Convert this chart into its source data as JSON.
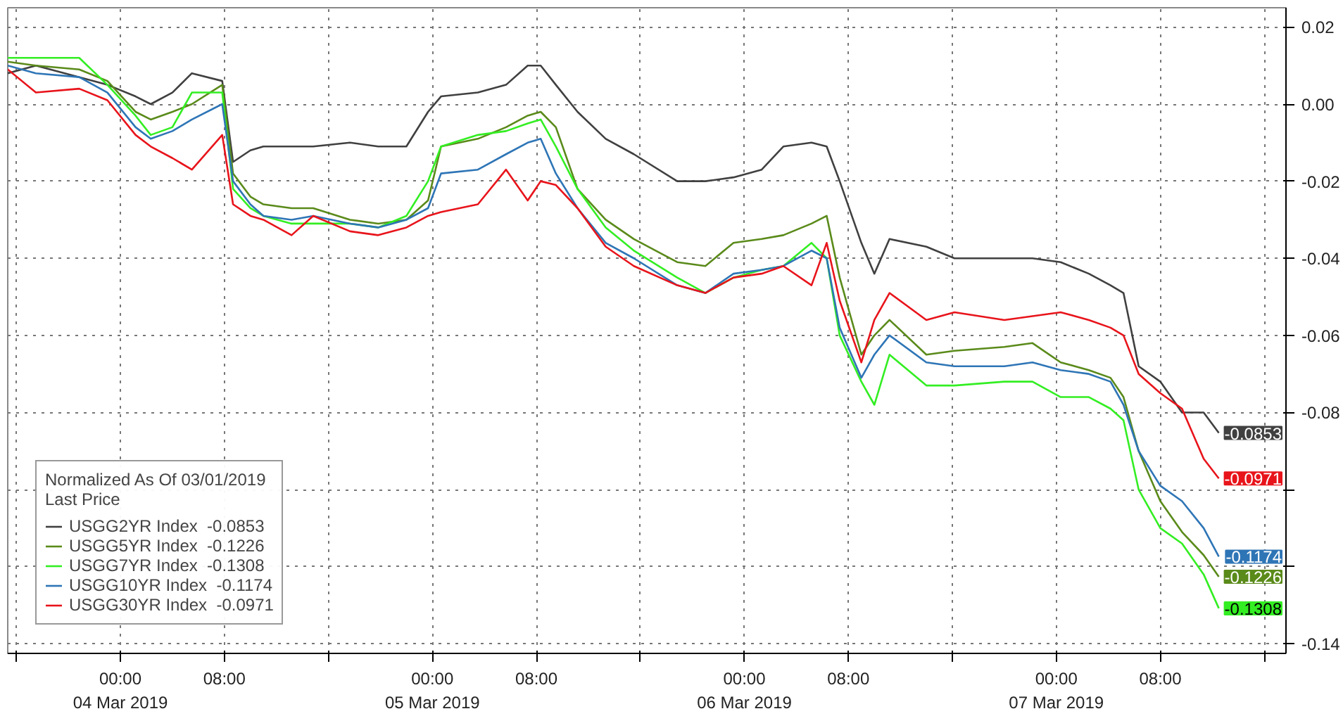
{
  "chart_data": {
    "type": "line",
    "legend_title": "Normalized As Of 03/01/2019\nLast Price",
    "legend": "bottom left",
    "grid": true,
    "line_style": "solid",
    "x": [
      "2019-03-03T15:20",
      "2019-03-03T17:30",
      "2019-03-03T20:50",
      "2019-03-03T23:00",
      "2019-03-04T01:10",
      "2019-03-04T02:20",
      "2019-03-04T04:00",
      "2019-03-04T05:30",
      "2019-03-04T07:50",
      "2019-03-04T08:40",
      "2019-03-04T10:00",
      "2019-03-04T11:00",
      "2019-03-04T13:10",
      "2019-03-04T14:50",
      "2019-03-04T17:40",
      "2019-03-04T19:50",
      "2019-03-04T22:00",
      "2019-03-04T23:40",
      "2019-03-05T00:40",
      "2019-03-05T03:30",
      "2019-03-05T05:40",
      "2019-03-05T07:20",
      "2019-03-05T08:20",
      "2019-03-05T09:30",
      "2019-03-05T11:10",
      "2019-03-05T13:20",
      "2019-03-05T15:30",
      "2019-03-05T18:50",
      "2019-03-05T21:00",
      "2019-03-05T23:10",
      "2019-03-06T01:20",
      "2019-03-06T03:00",
      "2019-03-06T05:10",
      "2019-03-06T06:20",
      "2019-03-06T07:20",
      "2019-03-06T09:00",
      "2019-03-06T10:00",
      "2019-03-06T11:10",
      "2019-03-06T14:00",
      "2019-03-06T16:10",
      "2019-03-06T20:00",
      "2019-03-06T22:10",
      "2019-03-07T00:20",
      "2019-03-07T02:30",
      "2019-03-07T04:10",
      "2019-03-07T05:10",
      "2019-03-07T06:20",
      "2019-03-07T08:00",
      "2019-03-07T09:40",
      "2019-03-07T11:20",
      "2019-03-07T12:30"
    ],
    "xlim": [
      "2019-03-03T15:20",
      "2019-03-07T17:40"
    ],
    "xticks": [
      {
        "value": "2019-03-03T16:00",
        "label": null
      },
      {
        "value": "2019-03-04T00:00",
        "label": "00:00\n04 Mar 2019"
      },
      {
        "value": "2019-03-04T08:00",
        "label": "08:00"
      },
      {
        "value": "2019-03-04T16:00",
        "label": null
      },
      {
        "value": "2019-03-05T00:00",
        "label": "00:00\n05 Mar 2019"
      },
      {
        "value": "2019-03-05T08:00",
        "label": "08:00"
      },
      {
        "value": "2019-03-05T16:00",
        "label": null
      },
      {
        "value": "2019-03-06T00:00",
        "label": "00:00\n06 Mar 2019"
      },
      {
        "value": "2019-03-06T08:00",
        "label": "08:00"
      },
      {
        "value": "2019-03-06T16:00",
        "label": null
      },
      {
        "value": "2019-03-07T00:00",
        "label": "00:00\n07 Mar 2019"
      },
      {
        "value": "2019-03-07T08:00",
        "label": "08:00"
      },
      {
        "value": "2019-03-07T16:00",
        "label": null
      }
    ],
    "ylim": [
      -0.1425,
      0.025
    ],
    "yticks": [
      {
        "value": 0.02,
        "label": "0.02"
      },
      {
        "value": 0,
        "label": "0.00"
      },
      {
        "value": -0.02,
        "label": "-0.02"
      },
      {
        "value": -0.04,
        "label": "-0.04"
      },
      {
        "value": -0.06,
        "label": "-0.06"
      },
      {
        "value": -0.08,
        "label": "-0.08"
      },
      {
        "value": -0.1,
        "label": null
      },
      {
        "value": -0.12,
        "label": null
      },
      {
        "value": -0.14,
        "label": "-0.14"
      }
    ],
    "series": [
      {
        "name": "USGG2YR Index  -0.0853",
        "color": "#404040",
        "values": [
          0.008,
          0.01,
          0.007,
          0.005,
          0.002,
          0.0,
          0.003,
          0.008,
          0.006,
          -0.015,
          -0.012,
          -0.011,
          -0.011,
          -0.011,
          -0.01,
          -0.011,
          -0.011,
          -0.002,
          0.002,
          0.003,
          0.005,
          0.01,
          0.01,
          0.005,
          -0.002,
          -0.009,
          -0.013,
          -0.02,
          -0.02,
          -0.019,
          -0.017,
          -0.011,
          -0.01,
          -0.011,
          -0.02,
          -0.036,
          -0.044,
          -0.035,
          -0.037,
          -0.04,
          -0.04,
          -0.04,
          -0.041,
          -0.044,
          -0.047,
          -0.049,
          -0.068,
          -0.072,
          -0.08,
          -0.08,
          -0.0853
        ],
        "value_labels": [
          null,
          null,
          null,
          null,
          null,
          null,
          null,
          null,
          null,
          null,
          null,
          null,
          null,
          null,
          null,
          null,
          null,
          null,
          null,
          null,
          null,
          null,
          null,
          null,
          null,
          null,
          null,
          null,
          null,
          null,
          null,
          null,
          null,
          null,
          null,
          null,
          null,
          null,
          null,
          null,
          null,
          null,
          null,
          null,
          null,
          null,
          null,
          null,
          null,
          null,
          "-0.0853"
        ]
      },
      {
        "name": "USGG5YR Index  -0.1226",
        "color": "#5a8a1a",
        "values": [
          0.011,
          0.01,
          0.009,
          0.006,
          -0.002,
          -0.004,
          -0.002,
          0.0,
          0.005,
          -0.018,
          -0.024,
          -0.026,
          -0.027,
          -0.027,
          -0.03,
          -0.031,
          -0.03,
          -0.025,
          -0.011,
          -0.009,
          -0.006,
          -0.003,
          -0.002,
          -0.006,
          -0.022,
          -0.03,
          -0.035,
          -0.041,
          -0.042,
          -0.036,
          -0.035,
          -0.034,
          -0.031,
          -0.029,
          -0.045,
          -0.065,
          -0.06,
          -0.056,
          -0.065,
          -0.064,
          -0.063,
          -0.062,
          -0.067,
          -0.069,
          -0.071,
          -0.076,
          -0.09,
          -0.103,
          -0.111,
          -0.117,
          -0.1226
        ],
        "value_labels": [
          null,
          null,
          null,
          null,
          null,
          null,
          null,
          null,
          null,
          null,
          null,
          null,
          null,
          null,
          null,
          null,
          null,
          null,
          null,
          null,
          null,
          null,
          null,
          null,
          null,
          null,
          null,
          null,
          null,
          null,
          null,
          null,
          null,
          null,
          null,
          null,
          null,
          null,
          null,
          null,
          null,
          null,
          null,
          null,
          null,
          null,
          null,
          null,
          null,
          null,
          "-0.1226"
        ]
      },
      {
        "name": "USGG7YR Index  -0.1308",
        "color": "#33ee22",
        "values": [
          0.012,
          0.012,
          0.012,
          0.005,
          -0.003,
          -0.008,
          -0.006,
          0.003,
          0.003,
          -0.022,
          -0.027,
          -0.029,
          -0.031,
          -0.031,
          -0.031,
          -0.032,
          -0.029,
          -0.02,
          -0.011,
          -0.008,
          -0.007,
          -0.005,
          -0.004,
          -0.011,
          -0.022,
          -0.032,
          -0.038,
          -0.045,
          -0.049,
          -0.045,
          -0.043,
          -0.042,
          -0.036,
          -0.04,
          -0.06,
          -0.072,
          -0.078,
          -0.065,
          -0.073,
          -0.073,
          -0.072,
          -0.072,
          -0.076,
          -0.076,
          -0.079,
          -0.082,
          -0.1,
          -0.11,
          -0.114,
          -0.122,
          -0.1308
        ],
        "value_labels": [
          null,
          null,
          null,
          null,
          null,
          null,
          null,
          null,
          null,
          null,
          null,
          null,
          null,
          null,
          null,
          null,
          null,
          null,
          null,
          null,
          null,
          null,
          null,
          null,
          null,
          null,
          null,
          null,
          null,
          null,
          null,
          null,
          null,
          null,
          null,
          null,
          null,
          null,
          null,
          null,
          null,
          null,
          null,
          null,
          null,
          null,
          null,
          null,
          null,
          null,
          "-0.1308"
        ]
      },
      {
        "name": "USGG10YR Index  -0.1174",
        "color": "#2e75b6",
        "values": [
          0.01,
          0.008,
          0.007,
          0.003,
          -0.006,
          -0.009,
          -0.007,
          -0.004,
          0.0,
          -0.02,
          -0.026,
          -0.029,
          -0.03,
          -0.029,
          -0.031,
          -0.032,
          -0.03,
          -0.027,
          -0.018,
          -0.017,
          -0.013,
          -0.01,
          -0.009,
          -0.018,
          -0.027,
          -0.036,
          -0.04,
          -0.047,
          -0.049,
          -0.044,
          -0.043,
          -0.042,
          -0.038,
          -0.04,
          -0.058,
          -0.071,
          -0.065,
          -0.06,
          -0.067,
          -0.068,
          -0.068,
          -0.067,
          -0.069,
          -0.07,
          -0.072,
          -0.078,
          -0.09,
          -0.099,
          -0.103,
          -0.11,
          -0.1174
        ],
        "value_labels": [
          null,
          null,
          null,
          null,
          null,
          null,
          null,
          null,
          null,
          null,
          null,
          null,
          null,
          null,
          null,
          null,
          null,
          null,
          null,
          null,
          null,
          null,
          null,
          null,
          null,
          null,
          null,
          null,
          null,
          null,
          null,
          null,
          null,
          null,
          null,
          null,
          null,
          null,
          null,
          null,
          null,
          null,
          null,
          null,
          null,
          null,
          null,
          null,
          null,
          null,
          "-0.1174"
        ]
      },
      {
        "name": "USGG30YR Index  -0.0971",
        "color": "#e8141b",
        "values": [
          0.009,
          0.003,
          0.004,
          0.001,
          -0.008,
          -0.011,
          -0.014,
          -0.017,
          -0.008,
          -0.026,
          -0.029,
          -0.03,
          -0.034,
          -0.029,
          -0.033,
          -0.034,
          -0.032,
          -0.029,
          -0.028,
          -0.026,
          -0.017,
          -0.025,
          -0.02,
          -0.021,
          -0.027,
          -0.037,
          -0.042,
          -0.047,
          -0.049,
          -0.045,
          -0.044,
          -0.042,
          -0.047,
          -0.036,
          -0.051,
          -0.067,
          -0.056,
          -0.049,
          -0.056,
          -0.054,
          -0.056,
          -0.055,
          -0.054,
          -0.056,
          -0.058,
          -0.06,
          -0.07,
          -0.075,
          -0.079,
          -0.092,
          -0.0971
        ],
        "value_labels": [
          null,
          null,
          null,
          null,
          null,
          null,
          null,
          null,
          null,
          null,
          null,
          null,
          null,
          null,
          null,
          null,
          null,
          null,
          null,
          null,
          null,
          null,
          null,
          null,
          null,
          null,
          null,
          null,
          null,
          null,
          null,
          null,
          null,
          null,
          null,
          null,
          null,
          null,
          null,
          null,
          null,
          null,
          null,
          null,
          null,
          null,
          null,
          null,
          null,
          null,
          "-0.0971"
        ]
      }
    ]
  }
}
